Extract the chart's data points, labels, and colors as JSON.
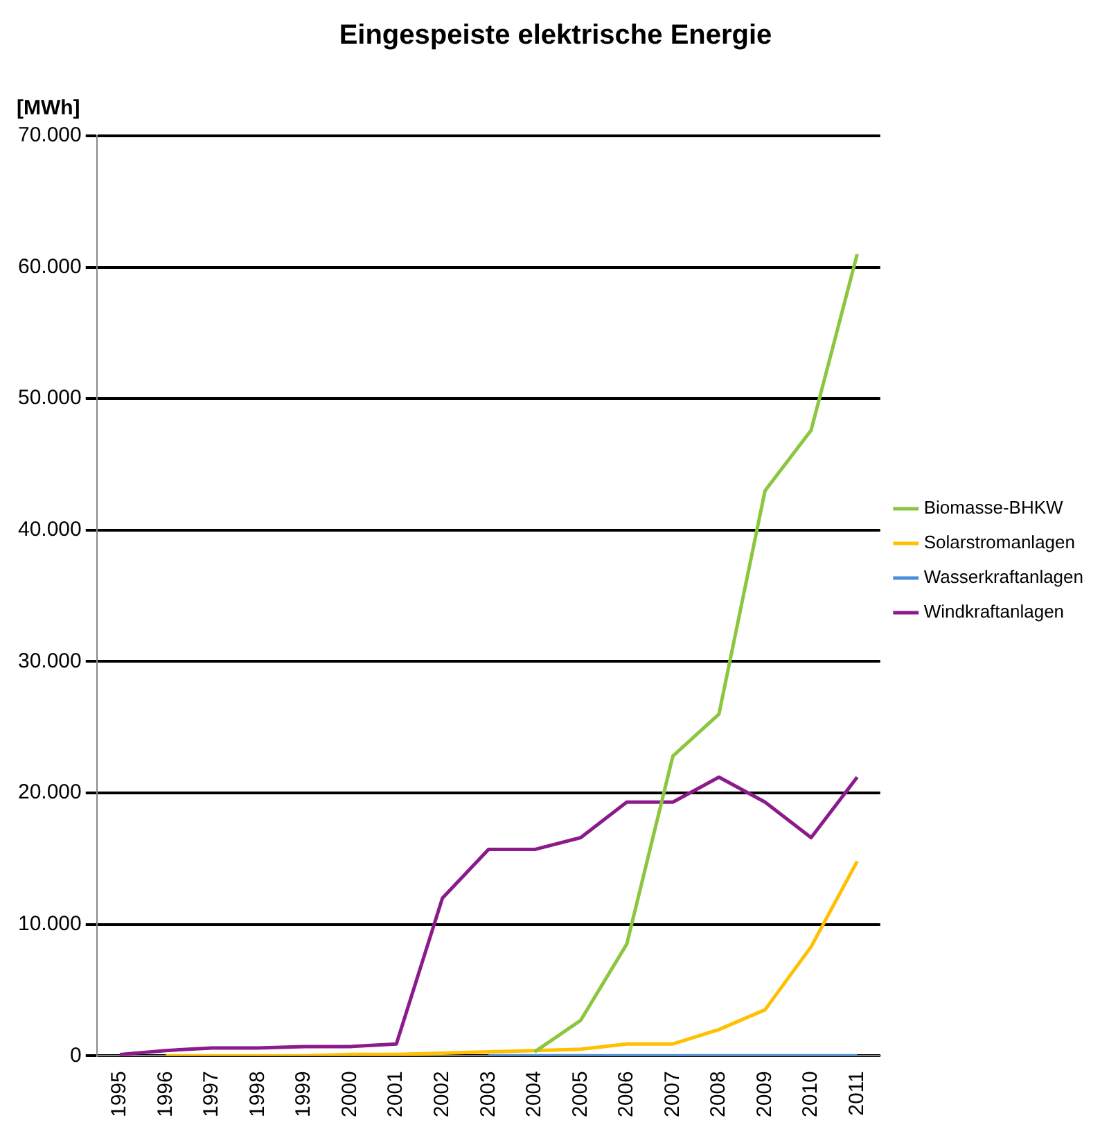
{
  "chart_data": {
    "type": "line",
    "title": "Eingespeiste elektrische Energie",
    "ylabel": "[MWh]",
    "categories": [
      "1995",
      "1996",
      "1997",
      "1998",
      "1999",
      "2000",
      "2001",
      "2002",
      "2003",
      "2004",
      "2005",
      "2006",
      "2007",
      "2008",
      "2009",
      "2010",
      "2011"
    ],
    "series": [
      {
        "name": "Biomasse-BHKW",
        "color": "#8cc63f",
        "values": [
          null,
          null,
          null,
          null,
          null,
          null,
          null,
          null,
          null,
          300,
          2700,
          8500,
          22800,
          26000,
          43000,
          47600,
          61000
        ]
      },
      {
        "name": "Solarstromanlagen",
        "color": "#ffc000",
        "values": [
          null,
          0,
          0,
          0,
          0,
          100,
          100,
          200,
          300,
          400,
          500,
          900,
          900,
          2000,
          3500,
          8300,
          14800
        ]
      },
      {
        "name": "Wasserkraftanlagen",
        "color": "#4a90d9",
        "values": [
          null,
          null,
          null,
          null,
          null,
          null,
          null,
          null,
          0,
          0,
          0,
          0,
          0,
          0,
          0,
          0,
          0
        ]
      },
      {
        "name": "Windkraftanlagen",
        "color": "#8b1a8b",
        "values": [
          100,
          400,
          600,
          600,
          700,
          700,
          900,
          12000,
          15700,
          15700,
          16600,
          19300,
          19300,
          21200,
          19300,
          16600,
          21200
        ]
      }
    ],
    "ylim": [
      0,
      70000
    ],
    "yticks": [
      {
        "value": 0,
        "label": "0"
      },
      {
        "value": 10000,
        "label": "10.000"
      },
      {
        "value": 20000,
        "label": "20.000"
      },
      {
        "value": 30000,
        "label": "30.000"
      },
      {
        "value": 40000,
        "label": "40.000"
      },
      {
        "value": 50000,
        "label": "50.000"
      },
      {
        "value": 60000,
        "label": "60.000"
      },
      {
        "value": 70000,
        "label": "70.000"
      }
    ],
    "grid": "y",
    "legend": "right",
    "marker": "none",
    "line_style": "solid"
  }
}
